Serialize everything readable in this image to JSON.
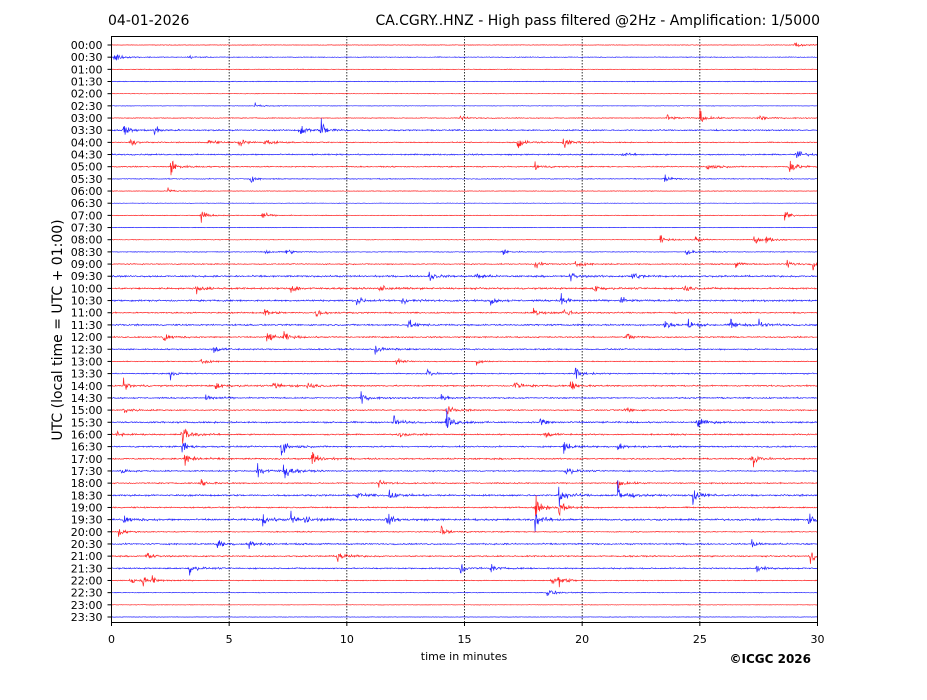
{
  "header": {
    "date": "04-01-2026",
    "title": "CA.CGRY..HNZ - High pass filtered @2Hz - Amplification: 1/5000"
  },
  "copyright": "©ICGC 2026",
  "chart_data": {
    "type": "line",
    "subtype": "helicorder",
    "xlabel": "time in minutes",
    "ylabel": "UTC (local time = UTC + 01:00)",
    "xlim": [
      0,
      30
    ],
    "xticks": [
      "0",
      "5",
      "10",
      "15",
      "20",
      "25",
      "30"
    ],
    "grid": "vertical dotted at x ticks",
    "colors": {
      "even_rows": "#ff0000",
      "odd_rows": "#0000ff"
    },
    "rows": [
      {
        "label": "00:00",
        "noise": 0.25,
        "events": [
          [
            29,
            1.2
          ]
        ]
      },
      {
        "label": "00:30",
        "noise": 0.3,
        "events": [
          [
            0.1,
            2
          ],
          [
            3.2,
            0.8
          ]
        ]
      },
      {
        "label": "01:00",
        "noise": 0.25,
        "events": []
      },
      {
        "label": "01:30",
        "noise": 0.3,
        "events": []
      },
      {
        "label": "02:00",
        "noise": 0.2,
        "events": []
      },
      {
        "label": "02:30",
        "noise": 0.2,
        "events": [
          [
            6.1,
            1
          ]
        ]
      },
      {
        "label": "03:00",
        "noise": 0.35,
        "events": [
          [
            14.8,
            0.8
          ],
          [
            23.6,
            1.5
          ],
          [
            25,
            2
          ],
          [
            27.5,
            1.2
          ]
        ]
      },
      {
        "label": "03:30",
        "noise": 0.55,
        "events": [
          [
            0.5,
            2
          ],
          [
            1.8,
            1.4
          ],
          [
            8,
            2.5
          ],
          [
            8.9,
            3
          ]
        ]
      },
      {
        "label": "04:00",
        "noise": 0.4,
        "events": [
          [
            0.8,
            1.3
          ],
          [
            4.1,
            1.5
          ],
          [
            5.4,
            1.8
          ],
          [
            6.5,
            1.8
          ],
          [
            17.2,
            3
          ],
          [
            19.2,
            1.8
          ]
        ]
      },
      {
        "label": "04:30",
        "noise": 0.55,
        "events": [
          [
            21.7,
            1
          ],
          [
            29.1,
            2
          ]
        ]
      },
      {
        "label": "05:00",
        "noise": 0.45,
        "events": [
          [
            2.5,
            2.6
          ],
          [
            18,
            1.4
          ],
          [
            25.3,
            2
          ],
          [
            28.8,
            3
          ]
        ]
      },
      {
        "label": "05:30",
        "noise": 0.35,
        "events": [
          [
            5.9,
            1
          ],
          [
            23.5,
            1.2
          ]
        ]
      },
      {
        "label": "06:00",
        "noise": 0.25,
        "events": [
          [
            2.4,
            1
          ]
        ]
      },
      {
        "label": "06:30",
        "noise": 0.2,
        "events": []
      },
      {
        "label": "07:00",
        "noise": 0.25,
        "events": [
          [
            3.8,
            1.6
          ],
          [
            6.4,
            1.2
          ],
          [
            28.6,
            1.4
          ]
        ]
      },
      {
        "label": "07:30",
        "noise": 0.2,
        "events": []
      },
      {
        "label": "08:00",
        "noise": 0.25,
        "events": [
          [
            23.3,
            1.3
          ],
          [
            24.8,
            1.2
          ],
          [
            27.3,
            1.3
          ],
          [
            27.8,
            1.2
          ]
        ]
      },
      {
        "label": "08:30",
        "noise": 0.3,
        "events": [
          [
            6.5,
            1
          ],
          [
            7.4,
            1.2
          ],
          [
            16.6,
            1
          ],
          [
            24.4,
            1.1
          ]
        ]
      },
      {
        "label": "09:00",
        "noise": 0.45,
        "events": [
          [
            18,
            1.3
          ],
          [
            19.7,
            1.4
          ],
          [
            26.5,
            1
          ],
          [
            28.7,
            1.4
          ],
          [
            29.8,
            1.8
          ]
        ]
      },
      {
        "label": "09:30",
        "noise": 0.7,
        "events": [
          [
            13.5,
            1.8
          ],
          [
            15.5,
            1.5
          ],
          [
            19.5,
            1.6
          ],
          [
            22.1,
            2
          ]
        ]
      },
      {
        "label": "10:00",
        "noise": 0.7,
        "events": [
          [
            3.6,
            1.5
          ],
          [
            7.6,
            1.8
          ],
          [
            11.4,
            1.4
          ],
          [
            20.5,
            1.3
          ],
          [
            24.3,
            1.4
          ]
        ]
      },
      {
        "label": "10:30",
        "noise": 0.7,
        "events": [
          [
            10.4,
            1.8
          ],
          [
            12.3,
            1.6
          ],
          [
            16.1,
            1.4
          ],
          [
            19.1,
            1.8
          ],
          [
            21.6,
            1.5
          ]
        ]
      },
      {
        "label": "11:00",
        "noise": 0.55,
        "events": [
          [
            6.5,
            1.5
          ],
          [
            8.7,
            1.2
          ],
          [
            17.9,
            1.6
          ],
          [
            19.2,
            1.8
          ]
        ]
      },
      {
        "label": "11:30",
        "noise": 0.65,
        "events": [
          [
            12.6,
            1.6
          ],
          [
            23.5,
            2
          ],
          [
            24.5,
            1.8
          ],
          [
            26.3,
            1.8
          ],
          [
            27.5,
            1.6
          ]
        ]
      },
      {
        "label": "12:00",
        "noise": 0.55,
        "events": [
          [
            2.2,
            2
          ],
          [
            6.6,
            1.8
          ],
          [
            7.3,
            1.5
          ],
          [
            21.9,
            1.4
          ]
        ]
      },
      {
        "label": "12:30",
        "noise": 0.55,
        "events": [
          [
            4.3,
            1.5
          ],
          [
            11.2,
            1.8
          ]
        ]
      },
      {
        "label": "13:00",
        "noise": 0.35,
        "events": [
          [
            3.8,
            1.2
          ],
          [
            12.1,
            1.3
          ],
          [
            15.5,
            1
          ]
        ]
      },
      {
        "label": "13:30",
        "noise": 0.45,
        "events": [
          [
            2.5,
            1.2
          ],
          [
            13.4,
            1.7
          ],
          [
            19.7,
            1.8
          ]
        ]
      },
      {
        "label": "14:00",
        "noise": 0.6,
        "events": [
          [
            0.5,
            1.6
          ],
          [
            4.4,
            1.4
          ],
          [
            6.9,
            1.8
          ],
          [
            8.3,
            1.6
          ],
          [
            17.1,
            2.2
          ],
          [
            19.5,
            1.8
          ]
        ]
      },
      {
        "label": "14:30",
        "noise": 0.55,
        "events": [
          [
            4,
            1.5
          ],
          [
            10.6,
            1.8
          ],
          [
            14,
            1.4
          ]
        ]
      },
      {
        "label": "15:00",
        "noise": 0.5,
        "events": [
          [
            0.5,
            1.6
          ],
          [
            14.2,
            2
          ],
          [
            21.8,
            1.5
          ]
        ]
      },
      {
        "label": "15:30",
        "noise": 0.65,
        "events": [
          [
            12,
            1.8
          ],
          [
            14.2,
            3.5
          ],
          [
            18.2,
            1.8
          ],
          [
            24.9,
            2
          ]
        ]
      },
      {
        "label": "16:00",
        "noise": 0.55,
        "events": [
          [
            0.2,
            1.2
          ],
          [
            3,
            3.5
          ],
          [
            12.2,
            1.3
          ],
          [
            18.4,
            1.5
          ]
        ]
      },
      {
        "label": "16:30",
        "noise": 0.6,
        "events": [
          [
            3,
            2
          ],
          [
            7.2,
            3
          ],
          [
            19.2,
            2
          ],
          [
            21.5,
            1.5
          ]
        ]
      },
      {
        "label": "17:00",
        "noise": 0.6,
        "events": [
          [
            3.1,
            3.2
          ],
          [
            8.5,
            3
          ],
          [
            27.2,
            3
          ]
        ]
      },
      {
        "label": "17:30",
        "noise": 0.5,
        "events": [
          [
            0.4,
            1
          ],
          [
            6.2,
            3
          ],
          [
            7.3,
            3.5
          ],
          [
            19.3,
            2
          ]
        ]
      },
      {
        "label": "18:00",
        "noise": 0.5,
        "events": [
          [
            3.8,
            1.8
          ],
          [
            11.3,
            1.2
          ],
          [
            21.5,
            2
          ]
        ]
      },
      {
        "label": "18:30",
        "noise": 0.7,
        "events": [
          [
            10.4,
            1.3
          ],
          [
            11.8,
            1.5
          ],
          [
            19,
            3.5
          ],
          [
            21.5,
            3.5
          ],
          [
            24.7,
            2.4
          ]
        ]
      },
      {
        "label": "19:00",
        "noise": 0.55,
        "events": [
          [
            18,
            3.5
          ],
          [
            19,
            2.5
          ]
        ]
      },
      {
        "label": "19:30",
        "noise": 0.8,
        "events": [
          [
            0.5,
            1.8
          ],
          [
            6.4,
            2
          ],
          [
            7.6,
            2
          ],
          [
            8.2,
            1.6
          ],
          [
            11.7,
            2
          ],
          [
            18,
            2.8
          ],
          [
            29.6,
            2
          ]
        ]
      },
      {
        "label": "20:00",
        "noise": 0.4,
        "events": [
          [
            0.3,
            1.3
          ],
          [
            14,
            2
          ]
        ]
      },
      {
        "label": "20:30",
        "noise": 0.6,
        "events": [
          [
            4.5,
            1.6
          ],
          [
            5.8,
            1.8
          ],
          [
            27.2,
            1.2
          ]
        ]
      },
      {
        "label": "21:00",
        "noise": 0.55,
        "events": [
          [
            1.5,
            1.5
          ],
          [
            9.6,
            2.6
          ],
          [
            29.7,
            2
          ]
        ]
      },
      {
        "label": "21:30",
        "noise": 0.55,
        "events": [
          [
            3.3,
            1.8
          ],
          [
            14.8,
            1.8
          ],
          [
            16.1,
            1.2
          ],
          [
            27.4,
            1.2
          ]
        ]
      },
      {
        "label": "22:00",
        "noise": 0.35,
        "events": [
          [
            0.8,
            1.1
          ],
          [
            1.3,
            1.4
          ],
          [
            1.7,
            1.3
          ],
          [
            18.7,
            1.4
          ],
          [
            19,
            2
          ]
        ]
      },
      {
        "label": "22:30",
        "noise": 0.25,
        "events": [
          [
            18.5,
            1.8
          ]
        ]
      },
      {
        "label": "23:00",
        "noise": 0.2,
        "events": []
      },
      {
        "label": "23:30",
        "noise": 0.2,
        "events": []
      }
    ]
  }
}
